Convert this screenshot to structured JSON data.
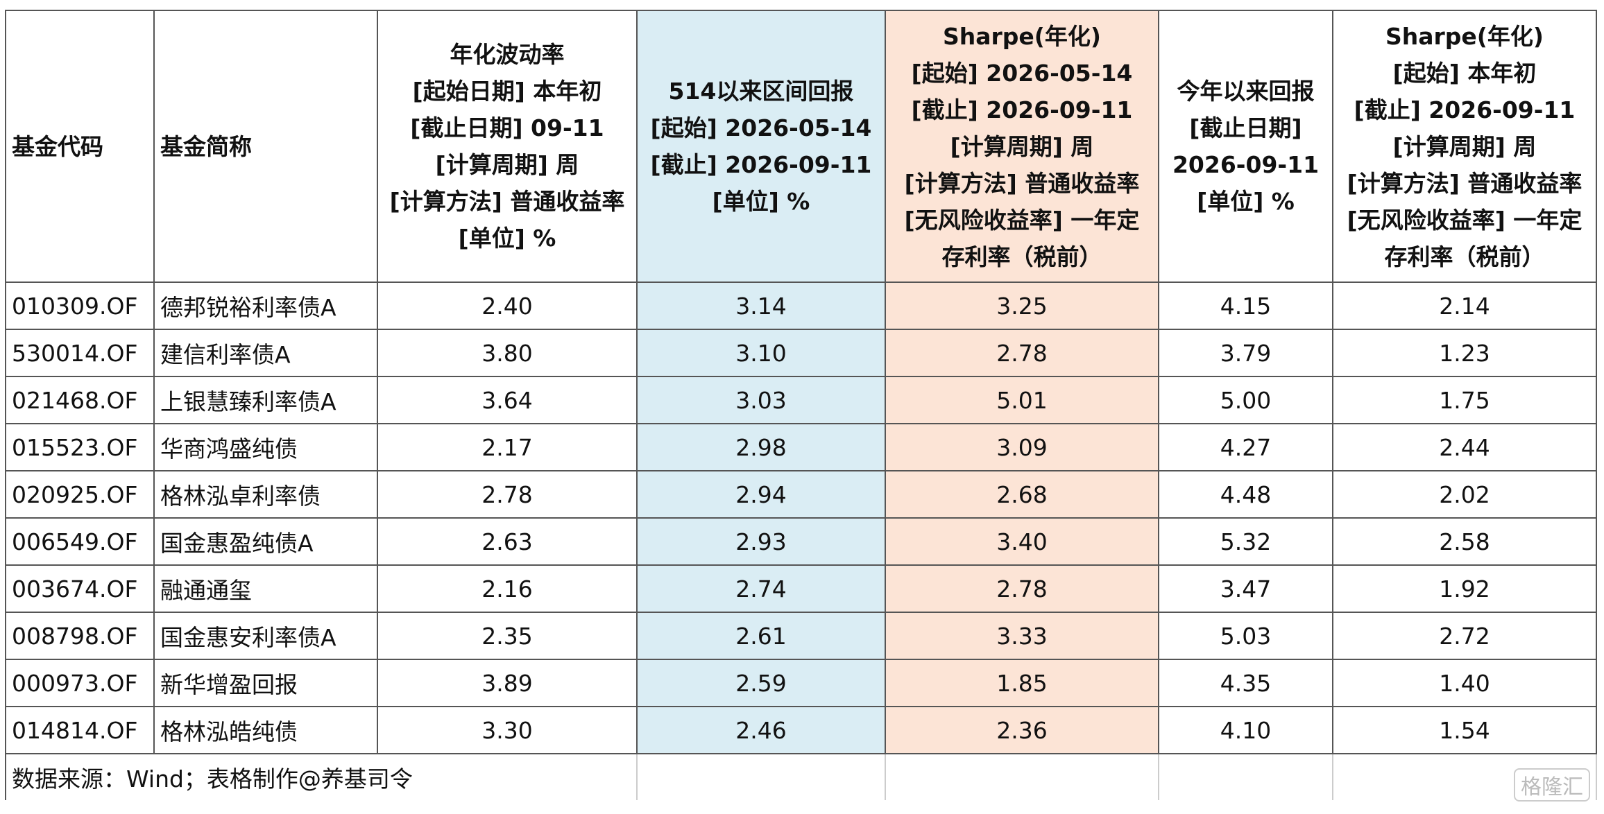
{
  "table": {
    "header": [
      [
        "基金代码"
      ],
      [
        "基金简称"
      ],
      [
        "年化波动率",
        "[起始日期] 本年初",
        "[截止日期] 09-11",
        "[计算周期] 周",
        "[计算方法] 普通收益率",
        "[单位] %"
      ],
      [
        "514以来区间回报",
        "[起始] 2026-05-14",
        "[截止] 2026-09-11",
        "[单位] %"
      ],
      [
        "Sharpe(年化)",
        "[起始] 2026-05-14",
        "[截止] 2026-09-11",
        "[计算周期] 周",
        "[计算方法] 普通收益率",
        "[无风险收益率] 一年定",
        "存利率（税前）"
      ],
      [
        "今年以来回报",
        "[截止日期]",
        "2026-09-11",
        "[单位] %"
      ],
      [
        "Sharpe(年化)",
        "[起始] 本年初",
        "[截止] 2026-09-11",
        "[计算周期] 周",
        "[计算方法] 普通收益率",
        "[无风险收益率] 一年定",
        "存利率（税前）"
      ]
    ],
    "rows": [
      [
        "010309.OF",
        "德邦锐裕利率债A",
        "2.40",
        "3.14",
        "3.25",
        "4.15",
        "2.14"
      ],
      [
        "530014.OF",
        "建信利率债A",
        "3.80",
        "3.10",
        "2.78",
        "3.79",
        "1.23"
      ],
      [
        "021468.OF",
        "上银慧臻利率债A",
        "3.64",
        "3.03",
        "5.01",
        "5.00",
        "1.75"
      ],
      [
        "015523.OF",
        "华商鸿盛纯债",
        "2.17",
        "2.98",
        "3.09",
        "4.27",
        "2.44"
      ],
      [
        "020925.OF",
        "格林泓卓利率债",
        "2.78",
        "2.94",
        "2.68",
        "4.48",
        "2.02"
      ],
      [
        "006549.OF",
        "国金惠盈纯债A",
        "2.63",
        "2.93",
        "3.40",
        "5.32",
        "2.58"
      ],
      [
        "003674.OF",
        "融通通玺",
        "2.16",
        "2.74",
        "2.78",
        "3.47",
        "1.92"
      ],
      [
        "008798.OF",
        "国金惠安利率债A",
        "2.35",
        "2.61",
        "3.33",
        "5.03",
        "2.72"
      ],
      [
        "000973.OF",
        "新华增盈回报",
        "3.89",
        "2.59",
        "1.85",
        "4.35",
        "1.40"
      ],
      [
        "014814.OF",
        "格林泓皓纯债",
        "3.30",
        "2.46",
        "2.36",
        "4.10",
        "1.54"
      ]
    ],
    "footer": "数据来源：Wind；表格制作@养基司令",
    "watermark": "格隆汇"
  }
}
